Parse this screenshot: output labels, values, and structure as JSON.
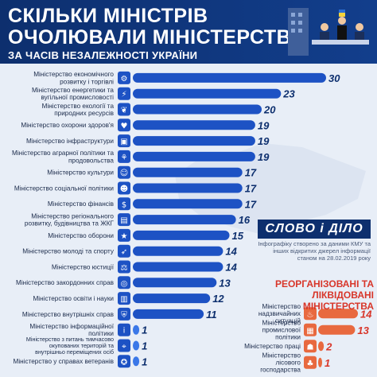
{
  "header": {
    "title_line1": "СКІЛЬКИ МІНІСТРІВ",
    "title_line2": "ОЧОЛЮВАЛИ МІНІСТЕРСТВА",
    "subtitle": "ЗА ЧАСІВ НЕЗАЛЕЖНОСТІ УКРАЇНИ"
  },
  "brand": {
    "logo": "СЛОВО і ДІЛО"
  },
  "source_note": "Інфографіку створено за даними КМУ та інших відкритих джерел інформації станом на 28.02.2019 року",
  "reorg_title": "РЕОРГАНІЗОВАНІ ТА ЛІКВІДОВАНІ МІНІСТЕРСТВА",
  "colors": {
    "header": "#0d2f6e",
    "bar": "#1d52c4",
    "bar_light": "#3b78e8",
    "reorg": "#e8693f",
    "reorg_text": "#d8362a"
  },
  "chart_data": [
    {
      "type": "bar",
      "categories": [
        "Міністерство економічного розвитку і торгівлі",
        "Міністерство енергетики та вугільної промисловості",
        "Міністерство екології та природних ресурсів",
        "Міністерство охорони здоров'я",
        "Міністерство інфраструктури",
        "Міністерство аграрної політики та продовольства",
        "Міністерство культури",
        "Міністерство соціальної політики",
        "Міністерство фінансів",
        "Міністерство регіонального розвитку, будівництва та ЖКГ",
        "Міністерство оборони",
        "Міністерство молоді та спорту",
        "Міністерство юстиції",
        "Міністерство закордонних справ",
        "Міністерство освіти і науки",
        "Міністерство внутрішніх справ",
        "Міністерство інформаційної політики",
        "Міністерство з питань тимчасово окупованих територій та внутрішньо переміщених осіб",
        "Міністерство у справах ветеранів"
      ],
      "values": [
        30,
        23,
        20,
        19,
        19,
        19,
        17,
        17,
        17,
        16,
        15,
        14,
        14,
        13,
        12,
        11,
        1,
        1,
        1
      ],
      "icons": [
        "gear-icon",
        "lightning-icon",
        "leaf-icon",
        "heart-icon",
        "bus-icon",
        "wheat-icon",
        "theatre-icon",
        "people-icon",
        "money-icon",
        "building-icon",
        "soldier-icon",
        "running-icon",
        "scales-icon",
        "globe-icon",
        "book-icon",
        "shield-icon",
        "info-icon",
        "map-icon",
        "medal-icon"
      ]
    },
    {
      "type": "bar",
      "title": "РЕОРГАНІЗОВАНІ ТА ЛІКВІДОВАНІ МІНІСТЕРСТВА",
      "categories": [
        "Міністерство надзвичайних ситуацій",
        "Міністерство промислової політики",
        "Міністерство праці",
        "Міністерство лісового господарства"
      ],
      "values": [
        14,
        13,
        2,
        1
      ],
      "icons": [
        "fire-icon",
        "factory-icon",
        "worker-icon",
        "tree-icon"
      ]
    }
  ]
}
